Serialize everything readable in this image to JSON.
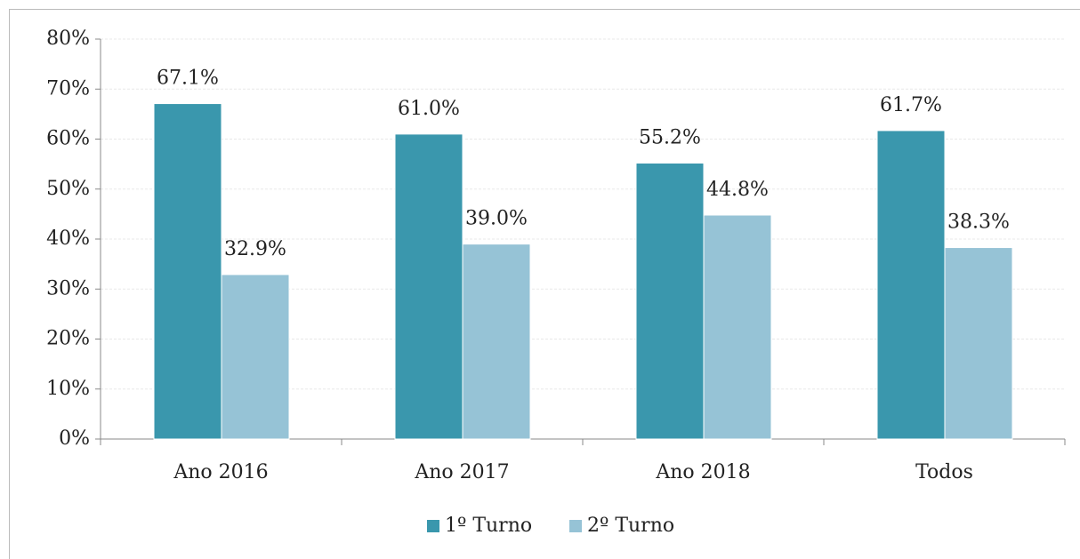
{
  "chart_data": {
    "type": "bar",
    "categories": [
      "Ano 2016",
      "Ano 2017",
      "Ano 2018",
      "Todos"
    ],
    "series": [
      {
        "name": "1º Turno",
        "color": "#3a97ad",
        "values": [
          67.1,
          61.0,
          55.2,
          61.7
        ],
        "value_labels": [
          "67.1%",
          "61.0%",
          "55.2%",
          "61.7%"
        ]
      },
      {
        "name": "2º Turno",
        "color": "#96c3d6",
        "values": [
          32.9,
          39.0,
          44.8,
          38.3
        ],
        "value_labels": [
          "32.9%",
          "39.0%",
          "44.8%",
          "38.3%"
        ]
      }
    ],
    "ylim": [
      0,
      80
    ],
    "yticks": [
      {
        "value": 0,
        "label": "0%"
      },
      {
        "value": 10,
        "label": "10%"
      },
      {
        "value": 20,
        "label": "20%"
      },
      {
        "value": 30,
        "label": "30%"
      },
      {
        "value": 40,
        "label": "40%"
      },
      {
        "value": 50,
        "label": "50%"
      },
      {
        "value": 60,
        "label": "60%"
      },
      {
        "value": 70,
        "label": "70%"
      },
      {
        "value": 80,
        "label": "80%"
      }
    ],
    "grid": true,
    "legend": "bottom"
  }
}
